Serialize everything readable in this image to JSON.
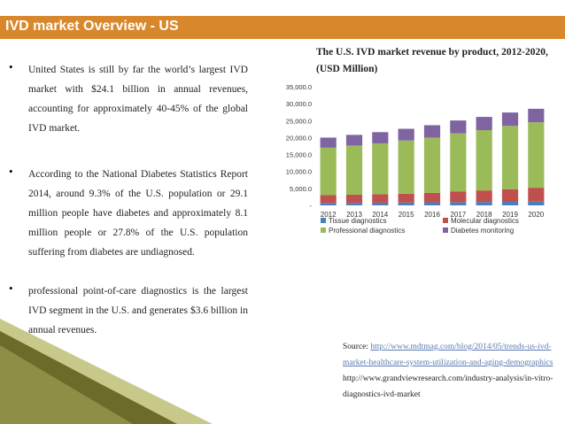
{
  "header": {
    "title": "IVD market Overview - US"
  },
  "bullets": [
    {
      "text": "United States is still by far the world’s largest IVD market with $24.1 billion in annual revenues, accounting for approximately 40-45% of the global IVD market."
    },
    {
      "text": "According to the National Diabetes Statistics Report 2014, around 9.3% of the U.S. population or 29.1 million people have diabetes and approximately 8.1 million people or 27.8% of the U.S. population suffering from diabetes are undiagnosed."
    },
    {
      "text": "professional point-of-care diagnostics is the largest IVD segment in the U.S. and generates $3.6 billion in annual revenues."
    }
  ],
  "source": {
    "label": "Source: ",
    "link1": "http://www.mdtmag.com/blog/2014/05/trends-us-ivd-market-healthcare-system-utilization-and-aging-demographics",
    "link2": "http://www.grandviewresearch.com/industry-analysis/in-vitro-diagnostics-ivd-market"
  },
  "chart_data": {
    "type": "bar",
    "stacked": true,
    "title": "The U.S. IVD market revenue by product, 2012-2020, (USD Million)",
    "categories": [
      "2012",
      "2013",
      "2014",
      "2015",
      "2016",
      "2017",
      "2018",
      "2019",
      "2020"
    ],
    "series": [
      {
        "name": "Tissue diagnostics",
        "color": "#4a7ebb",
        "values": [
          700,
          750,
          800,
          850,
          900,
          950,
          1000,
          1050,
          1100
        ]
      },
      {
        "name": "Molecular diagnostics",
        "color": "#c0504d",
        "values": [
          2300,
          2400,
          2500,
          2600,
          2800,
          3100,
          3400,
          3700,
          4100
        ]
      },
      {
        "name": "Professional diagnostics",
        "color": "#9bbb59",
        "values": [
          14000,
          14500,
          15000,
          15700,
          16300,
          17200,
          17800,
          18700,
          19300
        ]
      },
      {
        "name": "Diabetes monitoring",
        "color": "#8064a2",
        "values": [
          3000,
          3150,
          3300,
          3450,
          3650,
          3800,
          3900,
          3950,
          4000
        ]
      }
    ],
    "yticks": [
      "-",
      "5,000.0",
      "10,000.0",
      "15,000.0",
      "20,000.0",
      "25,000.0",
      "30,000.0",
      "35,000.0"
    ],
    "ylim": [
      0,
      35000
    ],
    "legend": "bottom",
    "grid": false
  },
  "colors": {
    "header": "#d9872c",
    "stripe_dark": "#6b6b2a",
    "stripe_light": "#c8c88a"
  }
}
